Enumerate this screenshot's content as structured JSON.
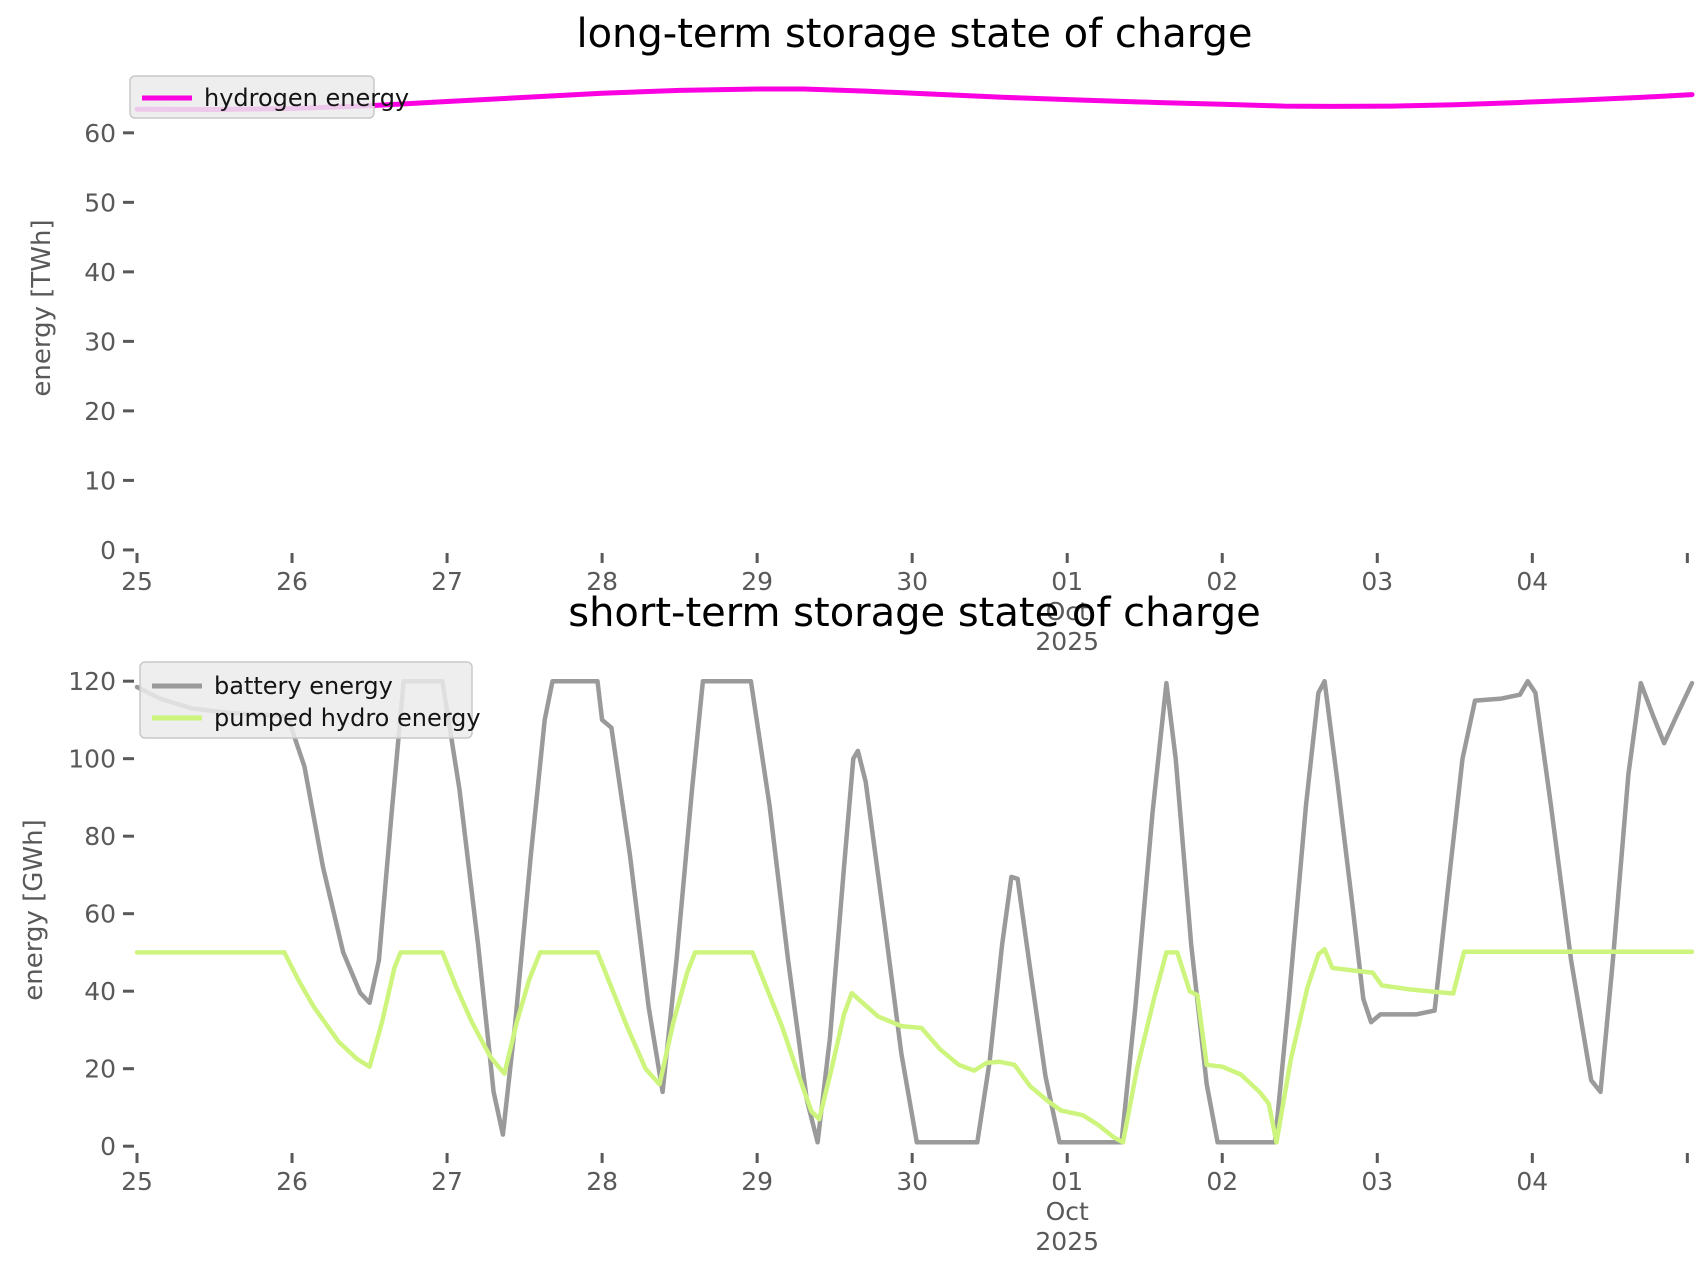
{
  "page": {
    "background": "#ffffff"
  },
  "chart_data": [
    {
      "type": "line",
      "title": "long-term storage state of charge",
      "xlabel": "",
      "ylabel": "energy [TWh]",
      "xlim": [
        25,
        35.03
      ],
      "ylim": [
        -0.3,
        69.9
      ],
      "grid": "off",
      "legend_position": "upper-left",
      "x_ticks": [
        {
          "v": 25,
          "label": "25"
        },
        {
          "v": 26,
          "label": "26"
        },
        {
          "v": 27,
          "label": "27"
        },
        {
          "v": 28,
          "label": "28"
        },
        {
          "v": 29,
          "label": "29"
        },
        {
          "v": 30,
          "label": "30"
        },
        {
          "v": 31,
          "label": "01"
        },
        {
          "v": 32,
          "label": "02"
        },
        {
          "v": 33,
          "label": "03"
        },
        {
          "v": 34,
          "label": "04"
        },
        {
          "v": 35,
          "label": ""
        }
      ],
      "x_period_label": {
        "v": 31,
        "month": "Oct",
        "year": "2025"
      },
      "y_ticks": [
        {
          "v": 0,
          "label": "0"
        },
        {
          "v": 10,
          "label": "10"
        },
        {
          "v": 20,
          "label": "20"
        },
        {
          "v": 30,
          "label": "30"
        },
        {
          "v": 40,
          "label": "40"
        },
        {
          "v": 50,
          "label": "50"
        },
        {
          "v": 60,
          "label": "60"
        }
      ],
      "legend": {
        "entries": [
          {
            "label": "hydrogen energy",
            "series": 0
          }
        ]
      },
      "series": [
        {
          "name": "hydrogen energy",
          "color": "#fb00e1",
          "width": 5,
          "points": [
            [
              25.0,
              63.4
            ],
            [
              25.5,
              63.35
            ],
            [
              26.0,
              63.5
            ],
            [
              26.5,
              63.9
            ],
            [
              27.0,
              64.5
            ],
            [
              27.5,
              65.1
            ],
            [
              28.0,
              65.7
            ],
            [
              28.5,
              66.1
            ],
            [
              29.0,
              66.3
            ],
            [
              29.3,
              66.3
            ],
            [
              29.7,
              66.0
            ],
            [
              30.1,
              65.6
            ],
            [
              30.6,
              65.1
            ],
            [
              31.1,
              64.7
            ],
            [
              31.6,
              64.35
            ],
            [
              32.0,
              64.1
            ],
            [
              32.4,
              63.85
            ],
            [
              32.7,
              63.8
            ],
            [
              33.1,
              63.85
            ],
            [
              33.5,
              64.05
            ],
            [
              33.9,
              64.35
            ],
            [
              34.3,
              64.7
            ],
            [
              34.7,
              65.1
            ],
            [
              35.03,
              65.5
            ]
          ]
        }
      ]
    },
    {
      "type": "line",
      "title": "short-term storage state of charge",
      "xlabel": "",
      "ylabel": "energy [GWh]",
      "xlim": [
        25,
        35.03
      ],
      "ylim": [
        -1.5,
        123.4
      ],
      "grid": "off",
      "legend_position": "upper-left",
      "x_ticks": [
        {
          "v": 25,
          "label": "25"
        },
        {
          "v": 26,
          "label": "26"
        },
        {
          "v": 27,
          "label": "27"
        },
        {
          "v": 28,
          "label": "28"
        },
        {
          "v": 29,
          "label": "29"
        },
        {
          "v": 30,
          "label": "30"
        },
        {
          "v": 31,
          "label": "01"
        },
        {
          "v": 32,
          "label": "02"
        },
        {
          "v": 33,
          "label": "03"
        },
        {
          "v": 34,
          "label": "04"
        },
        {
          "v": 35,
          "label": ""
        }
      ],
      "x_period_label": {
        "v": 31,
        "month": "Oct",
        "year": "2025"
      },
      "y_ticks": [
        {
          "v": 0,
          "label": "0"
        },
        {
          "v": 20,
          "label": "20"
        },
        {
          "v": 40,
          "label": "40"
        },
        {
          "v": 60,
          "label": "60"
        },
        {
          "v": 80,
          "label": "80"
        },
        {
          "v": 100,
          "label": "100"
        },
        {
          "v": 120,
          "label": "120"
        }
      ],
      "legend": {
        "entries": [
          {
            "label": "battery energy",
            "series": 0
          },
          {
            "label": "pumped hydro energy",
            "series": 1
          }
        ]
      },
      "series": [
        {
          "name": "battery energy",
          "color": "#9a9a9a",
          "width": 4.5,
          "points": [
            [
              25.0,
              118.5
            ],
            [
              25.15,
              115.5
            ],
            [
              25.35,
              113
            ],
            [
              25.6,
              111.8
            ],
            [
              25.97,
              111
            ],
            [
              26.08,
              98
            ],
            [
              26.2,
              72
            ],
            [
              26.33,
              50
            ],
            [
              26.44,
              39.5
            ],
            [
              26.5,
              37
            ],
            [
              26.56,
              48
            ],
            [
              26.64,
              85
            ],
            [
              26.72,
              120
            ],
            [
              26.97,
              120
            ],
            [
              27.08,
              92
            ],
            [
              27.2,
              52
            ],
            [
              27.3,
              14
            ],
            [
              27.36,
              3
            ],
            [
              27.44,
              32
            ],
            [
              27.54,
              75
            ],
            [
              27.63,
              110
            ],
            [
              27.68,
              120
            ],
            [
              27.97,
              120
            ],
            [
              28.0,
              110
            ],
            [
              28.06,
              108
            ],
            [
              28.18,
              75
            ],
            [
              28.3,
              36
            ],
            [
              28.39,
              14
            ],
            [
              28.48,
              48
            ],
            [
              28.58,
              92
            ],
            [
              28.65,
              120
            ],
            [
              28.96,
              120
            ],
            [
              29.08,
              88
            ],
            [
              29.2,
              48
            ],
            [
              29.32,
              12
            ],
            [
              29.39,
              1
            ],
            [
              29.47,
              28
            ],
            [
              29.56,
              72
            ],
            [
              29.62,
              100
            ],
            [
              29.65,
              102
            ],
            [
              29.7,
              94
            ],
            [
              29.82,
              58
            ],
            [
              29.93,
              24
            ],
            [
              30.03,
              1
            ],
            [
              30.42,
              1
            ],
            [
              30.5,
              22
            ],
            [
              30.58,
              52
            ],
            [
              30.64,
              69.5
            ],
            [
              30.68,
              69
            ],
            [
              30.76,
              46
            ],
            [
              30.86,
              18
            ],
            [
              30.95,
              1
            ],
            [
              31.35,
              1
            ],
            [
              31.44,
              36
            ],
            [
              31.55,
              86
            ],
            [
              31.64,
              119.5
            ],
            [
              31.7,
              100
            ],
            [
              31.8,
              52
            ],
            [
              31.9,
              16
            ],
            [
              31.97,
              1
            ],
            [
              32.34,
              1
            ],
            [
              32.43,
              38
            ],
            [
              32.54,
              88
            ],
            [
              32.62,
              117
            ],
            [
              32.66,
              120
            ],
            [
              32.74,
              95
            ],
            [
              32.84,
              62
            ],
            [
              32.91,
              38
            ],
            [
              32.96,
              32
            ],
            [
              33.02,
              34
            ],
            [
              33.25,
              34
            ],
            [
              33.37,
              35
            ],
            [
              33.46,
              68
            ],
            [
              33.55,
              100
            ],
            [
              33.63,
              115
            ],
            [
              33.8,
              115.5
            ],
            [
              33.92,
              116.5
            ],
            [
              33.97,
              120
            ],
            [
              34.02,
              117
            ],
            [
              34.12,
              88
            ],
            [
              34.25,
              48
            ],
            [
              34.38,
              17
            ],
            [
              34.44,
              14
            ],
            [
              34.52,
              48
            ],
            [
              34.62,
              96
            ],
            [
              34.7,
              119.5
            ],
            [
              34.78,
              111
            ],
            [
              34.85,
              104
            ],
            [
              34.93,
              111
            ],
            [
              35.03,
              119.5
            ]
          ]
        },
        {
          "name": "pumped hydro energy",
          "color": "#cdf57d",
          "width": 4.5,
          "points": [
            [
              25.0,
              50
            ],
            [
              25.95,
              50
            ],
            [
              26.04,
              43
            ],
            [
              26.14,
              36
            ],
            [
              26.3,
              27
            ],
            [
              26.42,
              22.5
            ],
            [
              26.5,
              20.5
            ],
            [
              26.58,
              32
            ],
            [
              26.66,
              46
            ],
            [
              26.7,
              50
            ],
            [
              26.97,
              50
            ],
            [
              27.06,
              41
            ],
            [
              27.16,
              32
            ],
            [
              27.28,
              23
            ],
            [
              27.37,
              18.7
            ],
            [
              27.45,
              32
            ],
            [
              27.53,
              43
            ],
            [
              27.6,
              50
            ],
            [
              27.97,
              50
            ],
            [
              28.06,
              41
            ],
            [
              28.16,
              31
            ],
            [
              28.28,
              20
            ],
            [
              28.37,
              16
            ],
            [
              28.46,
              32
            ],
            [
              28.55,
              45
            ],
            [
              28.6,
              50
            ],
            [
              28.97,
              50
            ],
            [
              29.06,
              41
            ],
            [
              29.16,
              31
            ],
            [
              29.27,
              18
            ],
            [
              29.35,
              9
            ],
            [
              29.4,
              7
            ],
            [
              29.48,
              20
            ],
            [
              29.56,
              34
            ],
            [
              29.61,
              39.5
            ],
            [
              29.68,
              37
            ],
            [
              29.78,
              33.5
            ],
            [
              29.93,
              31
            ],
            [
              30.06,
              30.5
            ],
            [
              30.18,
              25
            ],
            [
              30.3,
              21
            ],
            [
              30.4,
              19.5
            ],
            [
              30.48,
              21.5
            ],
            [
              30.56,
              21.8
            ],
            [
              30.66,
              21
            ],
            [
              30.76,
              15.5
            ],
            [
              30.88,
              11.5
            ],
            [
              30.96,
              9.2
            ],
            [
              31.1,
              8
            ],
            [
              31.2,
              5.5
            ],
            [
              31.3,
              2.3
            ],
            [
              31.36,
              1
            ],
            [
              31.45,
              20
            ],
            [
              31.56,
              38
            ],
            [
              31.64,
              50
            ],
            [
              31.71,
              50
            ],
            [
              31.79,
              40
            ],
            [
              31.84,
              39
            ],
            [
              31.9,
              21
            ],
            [
              32.0,
              20.5
            ],
            [
              32.12,
              18.5
            ],
            [
              32.24,
              14
            ],
            [
              32.3,
              11
            ],
            [
              32.35,
              1
            ],
            [
              32.44,
              22
            ],
            [
              32.55,
              41
            ],
            [
              32.62,
              49.5
            ],
            [
              32.66,
              50.8
            ],
            [
              32.71,
              46
            ],
            [
              32.85,
              45.3
            ],
            [
              32.97,
              44.8
            ],
            [
              33.03,
              41.5
            ],
            [
              33.2,
              40.5
            ],
            [
              33.4,
              39.7
            ],
            [
              33.49,
              39.4
            ],
            [
              33.56,
              50.2
            ],
            [
              35.03,
              50.2
            ]
          ]
        }
      ]
    }
  ]
}
